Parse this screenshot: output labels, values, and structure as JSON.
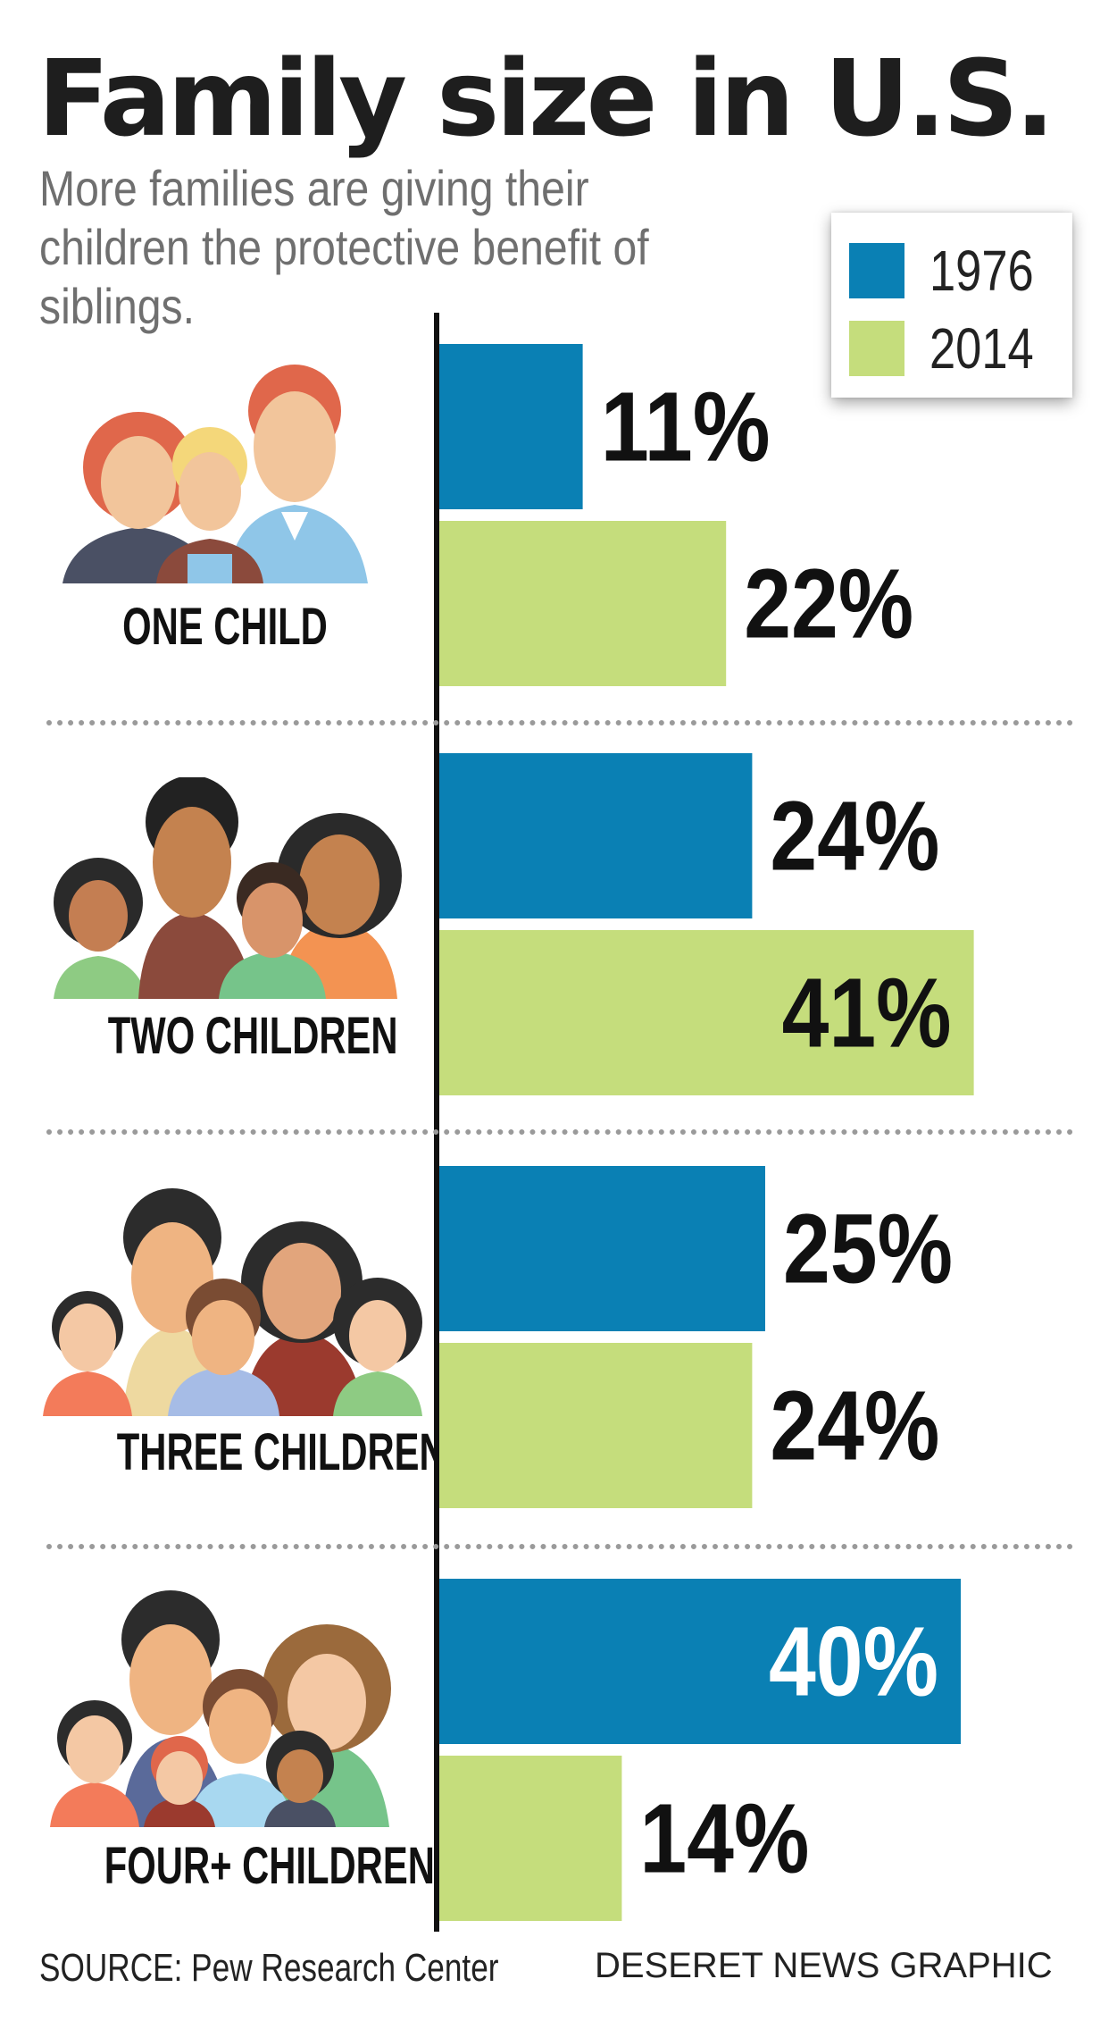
{
  "title": "Family size in U.S.",
  "subtitle": "More families are giving their children the protective benefit of siblings.",
  "legend": [
    {
      "label": "1976",
      "color": "#0a80b4"
    },
    {
      "label": "2014",
      "color": "#c5dd7c"
    }
  ],
  "groups": [
    {
      "label": "ONE CHILD",
      "icon": "family-one-child-illustration"
    },
    {
      "label": "TWO CHILDREN",
      "icon": "family-two-children-illustration"
    },
    {
      "label": "THREE CHILDREN",
      "icon": "family-three-children-illustration"
    },
    {
      "label": "FOUR+ CHILDREN",
      "icon": "family-four-children-illustration"
    }
  ],
  "source": "SOURCE: Pew Research Center",
  "credit": "DESERET NEWS GRAPHIC",
  "chart_data": {
    "type": "bar",
    "orientation": "horizontal",
    "title": "Family size in U.S.",
    "categories": [
      "ONE CHILD",
      "TWO CHILDREN",
      "THREE CHILDREN",
      "FOUR+ CHILDREN"
    ],
    "series": [
      {
        "name": "1976",
        "values": [
          11,
          24,
          25,
          40
        ],
        "color": "#0a80b4"
      },
      {
        "name": "2014",
        "values": [
          22,
          41,
          24,
          14
        ],
        "color": "#c5dd7c"
      }
    ],
    "value_labels": {
      "1976": [
        "11%",
        "24%",
        "25%",
        "40%"
      ],
      "2014": [
        "22%",
        "41%",
        "24%",
        "14%"
      ]
    },
    "unit": "%",
    "grid": false,
    "legend_position": "top-right"
  }
}
